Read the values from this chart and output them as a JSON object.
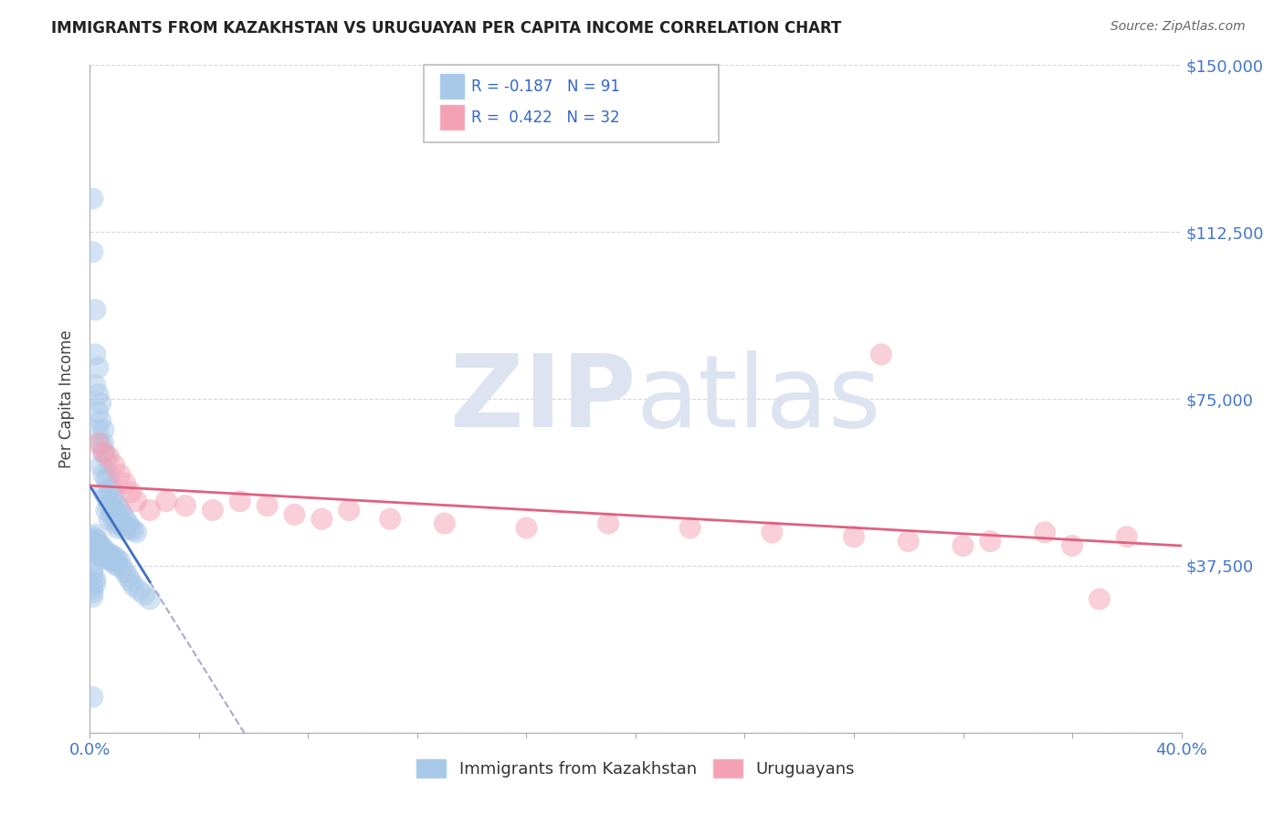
{
  "title": "IMMIGRANTS FROM KAZAKHSTAN VS URUGUAYAN PER CAPITA INCOME CORRELATION CHART",
  "source": "Source: ZipAtlas.com",
  "ylabel": "Per Capita Income",
  "xlabel": "",
  "xlim": [
    0.0,
    0.4
  ],
  "ylim": [
    0,
    150000
  ],
  "yticks": [
    0,
    37500,
    75000,
    112500,
    150000
  ],
  "ytick_labels": [
    "",
    "$37,500",
    "$75,000",
    "$112,500",
    "$150,000"
  ],
  "blue_R": -0.187,
  "blue_N": 91,
  "pink_R": 0.422,
  "pink_N": 32,
  "blue_color": "#a8c8e8",
  "pink_color": "#f4a0b5",
  "blue_line_color": "#4070c0",
  "pink_line_color": "#e06080",
  "gray_dash_color": "#aaaacc",
  "background_color": "#ffffff",
  "grid_color": "#cccccc",
  "watermark_color": "#dde3f0",
  "watermark_text": "ZIPatlas",
  "legend_label_blue": "Immigrants from Kazakhstan",
  "legend_label_pink": "Uruguayans",
  "blue_scatter_x": [
    0.001,
    0.001,
    0.002,
    0.002,
    0.002,
    0.003,
    0.003,
    0.003,
    0.003,
    0.004,
    0.004,
    0.004,
    0.004,
    0.005,
    0.005,
    0.005,
    0.005,
    0.005,
    0.006,
    0.006,
    0.006,
    0.006,
    0.007,
    0.007,
    0.007,
    0.007,
    0.008,
    0.008,
    0.008,
    0.009,
    0.009,
    0.009,
    0.01,
    0.01,
    0.01,
    0.011,
    0.011,
    0.012,
    0.012,
    0.013,
    0.013,
    0.014,
    0.015,
    0.016,
    0.017,
    0.001,
    0.001,
    0.001,
    0.001,
    0.001,
    0.002,
    0.002,
    0.002,
    0.002,
    0.003,
    0.003,
    0.003,
    0.003,
    0.004,
    0.004,
    0.004,
    0.005,
    0.005,
    0.005,
    0.006,
    0.006,
    0.007,
    0.007,
    0.008,
    0.008,
    0.009,
    0.009,
    0.01,
    0.01,
    0.011,
    0.012,
    0.013,
    0.014,
    0.015,
    0.016,
    0.018,
    0.02,
    0.022,
    0.001,
    0.001,
    0.002,
    0.002,
    0.001,
    0.001,
    0.001,
    0.001
  ],
  "blue_scatter_y": [
    120000,
    108000,
    95000,
    85000,
    78000,
    72000,
    68000,
    82000,
    76000,
    70000,
    65000,
    60000,
    74000,
    68000,
    63000,
    58000,
    54000,
    65000,
    62000,
    57000,
    53000,
    50000,
    58000,
    54000,
    51000,
    48000,
    55000,
    52000,
    49000,
    53000,
    50000,
    47000,
    51000,
    48000,
    46000,
    50000,
    47000,
    49000,
    46500,
    48000,
    45500,
    47000,
    46000,
    45500,
    45000,
    44000,
    43000,
    42000,
    41500,
    40500,
    44500,
    43500,
    42500,
    41000,
    43000,
    42000,
    41000,
    40000,
    42000,
    41000,
    39500,
    41500,
    40500,
    39000,
    40500,
    39500,
    40000,
    39000,
    40000,
    38500,
    39500,
    38000,
    39000,
    37500,
    38500,
    37000,
    36000,
    35000,
    34000,
    33000,
    32000,
    31000,
    30000,
    36500,
    35500,
    34500,
    33500,
    32500,
    31500,
    30500,
    8000
  ],
  "pink_scatter_x": [
    0.003,
    0.005,
    0.007,
    0.009,
    0.011,
    0.013,
    0.015,
    0.017,
    0.022,
    0.028,
    0.035,
    0.045,
    0.055,
    0.065,
    0.075,
    0.085,
    0.095,
    0.11,
    0.13,
    0.16,
    0.19,
    0.22,
    0.25,
    0.28,
    0.3,
    0.32,
    0.35,
    0.38,
    0.29,
    0.33,
    0.36,
    0.37
  ],
  "pink_scatter_y": [
    65000,
    63000,
    62000,
    60000,
    58000,
    56000,
    54000,
    52000,
    50000,
    52000,
    51000,
    50000,
    52000,
    51000,
    49000,
    48000,
    50000,
    48000,
    47000,
    46000,
    47000,
    46000,
    45000,
    44000,
    43000,
    42000,
    45000,
    44000,
    85000,
    43000,
    42000,
    30000
  ]
}
